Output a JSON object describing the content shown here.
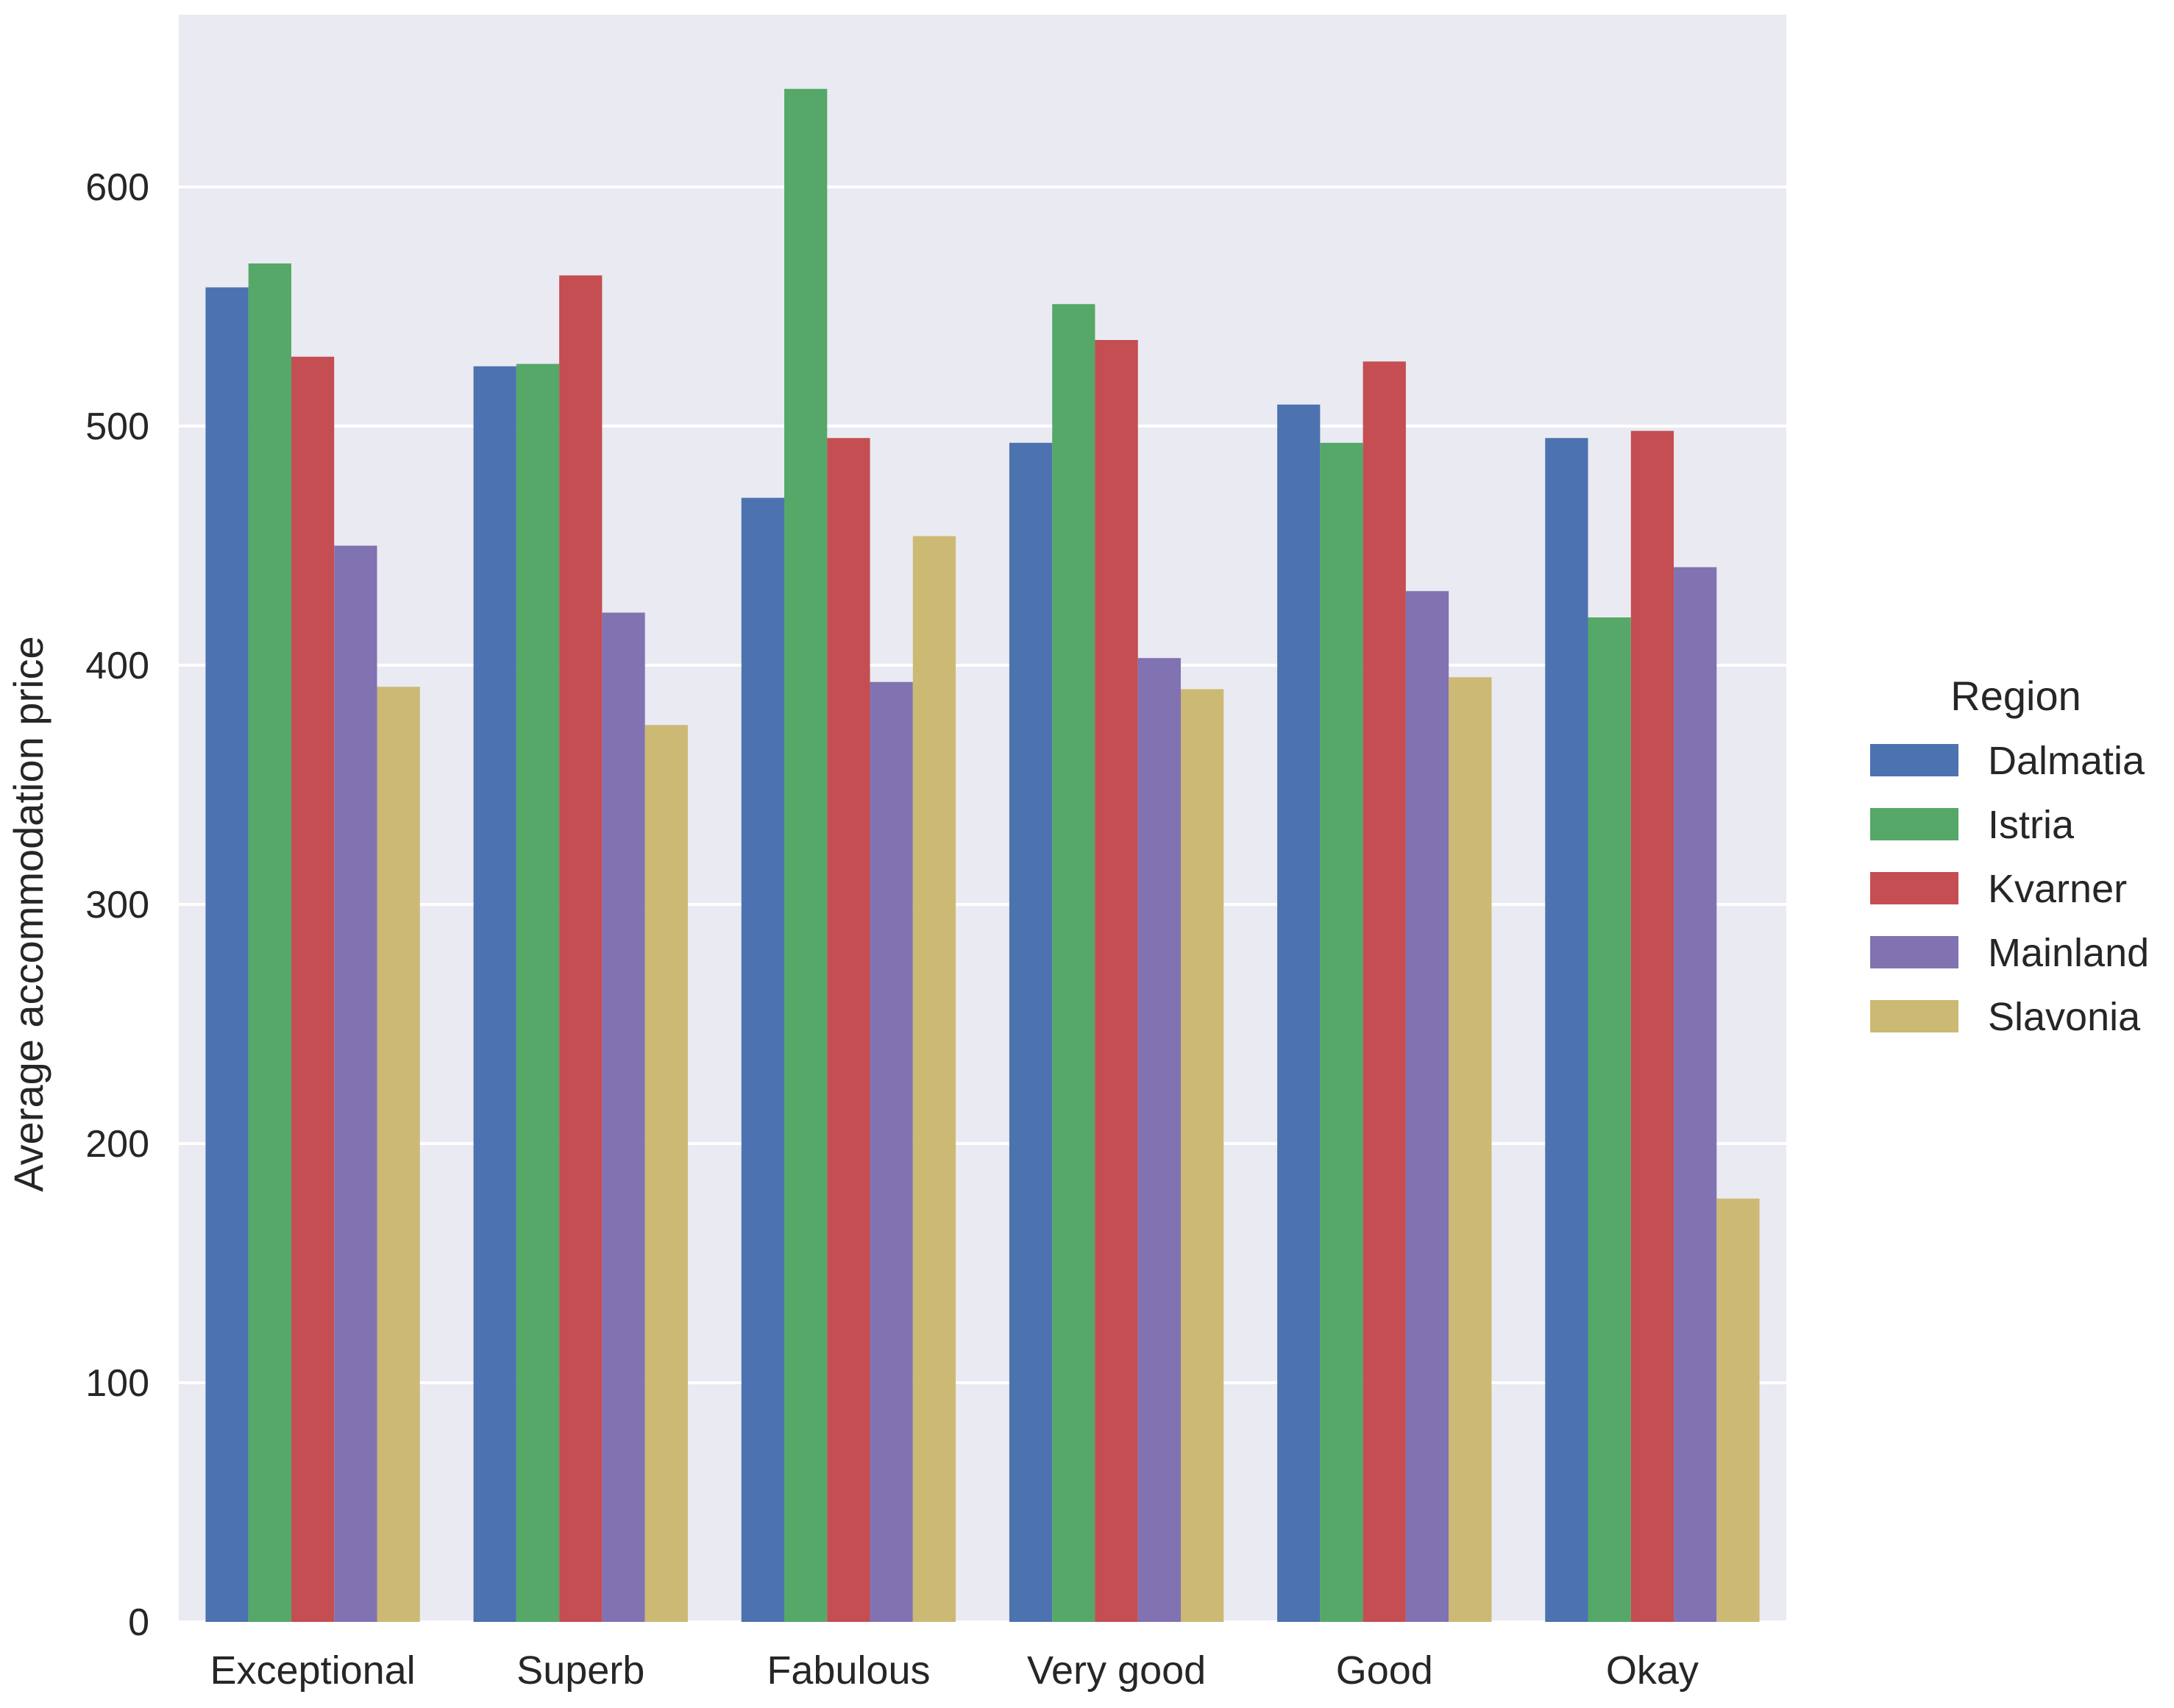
{
  "chart_data": {
    "type": "bar",
    "title": "",
    "xlabel": "",
    "ylabel": "Average accommodation price",
    "categories": [
      "Exceptional",
      "Superb",
      "Fabulous",
      "Very good",
      "Good",
      "Okay"
    ],
    "yticks": [
      "0",
      "100",
      "200",
      "300",
      "400",
      "500",
      "600"
    ],
    "ylim": [
      0,
      672
    ],
    "grid": true,
    "legend": {
      "title": "Region",
      "placement": "right"
    },
    "series": [
      {
        "name": "Dalmatia",
        "color": "#4c72b0",
        "values": [
          558,
          525,
          470,
          493,
          509,
          495
        ]
      },
      {
        "name": "Istria",
        "color": "#55a868",
        "values": [
          568,
          526,
          641,
          551,
          493,
          420
        ]
      },
      {
        "name": "Kvarner",
        "color": "#c44e52",
        "values": [
          529,
          563,
          495,
          536,
          527,
          498
        ]
      },
      {
        "name": "Mainland",
        "color": "#8172b2",
        "values": [
          450,
          422,
          393,
          403,
          431,
          441
        ]
      },
      {
        "name": "Slavonia",
        "color": "#ccb974",
        "values": [
          391,
          375,
          454,
          390,
          395,
          177
        ]
      }
    ],
    "plot_background": "#eaeaf2"
  }
}
